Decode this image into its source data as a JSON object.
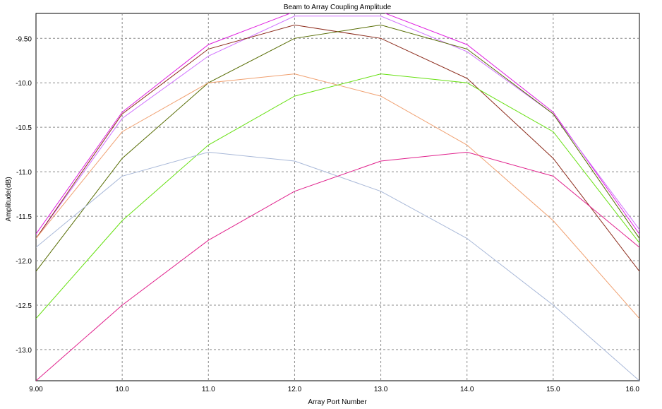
{
  "chart_data": {
    "type": "line",
    "title": "Beam to Array Coupling Amplitude",
    "xlabel": "Array Port Number",
    "ylabel": "Amplitude(dB)",
    "xlim": [
      9.0,
      16.0
    ],
    "ylim": [
      -13.35,
      -9.22
    ],
    "grid": true,
    "x_ticks": [
      9.0,
      10.0,
      11.0,
      12.0,
      13.0,
      14.0,
      15.0,
      16.0
    ],
    "x_tick_labels": [
      "9.00",
      "10.0",
      "11.0",
      "12.0",
      "13.0",
      "14.0",
      "15.0",
      "16.0"
    ],
    "y_ticks": [
      -9.5,
      -10.0,
      -10.5,
      -11.0,
      -11.5,
      -12.0,
      -12.5,
      -13.0
    ],
    "y_tick_labels": [
      "-9.50",
      "-10.0",
      "-10.5",
      "-11.0",
      "-11.5",
      "-12.0",
      "-12.5",
      "-13.0"
    ],
    "x": [
      9,
      10,
      11,
      12,
      13,
      14,
      15,
      16
    ],
    "series": [
      {
        "color": "#e020e0",
        "values": [
          -11.7,
          -10.33,
          -9.57,
          -9.2,
          -9.2,
          -9.57,
          -10.33,
          -11.7
        ]
      },
      {
        "color": "#d070ff",
        "values": [
          -11.75,
          -10.4,
          -9.7,
          -9.25,
          -9.25,
          -9.65,
          -10.35,
          -11.65
        ]
      },
      {
        "color": "#8b2a1a",
        "values": [
          -11.75,
          -10.35,
          -9.62,
          -9.35,
          -9.5,
          -9.95,
          -10.85,
          -12.12
        ]
      },
      {
        "color": "#556b00",
        "values": [
          -12.12,
          -10.85,
          -10.0,
          -9.5,
          -9.35,
          -9.62,
          -10.35,
          -11.75
        ]
      },
      {
        "color": "#f0a070",
        "values": [
          -11.75,
          -10.55,
          -10.0,
          -9.9,
          -10.15,
          -10.7,
          -11.55,
          -12.65
        ]
      },
      {
        "color": "#66e010",
        "values": [
          -12.65,
          -11.55,
          -10.7,
          -10.15,
          -9.9,
          -10.0,
          -10.55,
          -11.8
        ]
      },
      {
        "color": "#a8b8d8",
        "values": [
          -11.85,
          -11.05,
          -10.78,
          -10.88,
          -11.22,
          -11.75,
          -12.5,
          -13.35
        ]
      },
      {
        "color": "#e0208c",
        "values": [
          -13.35,
          -12.5,
          -11.77,
          -11.22,
          -10.88,
          -10.78,
          -11.05,
          -11.85
        ]
      }
    ]
  }
}
